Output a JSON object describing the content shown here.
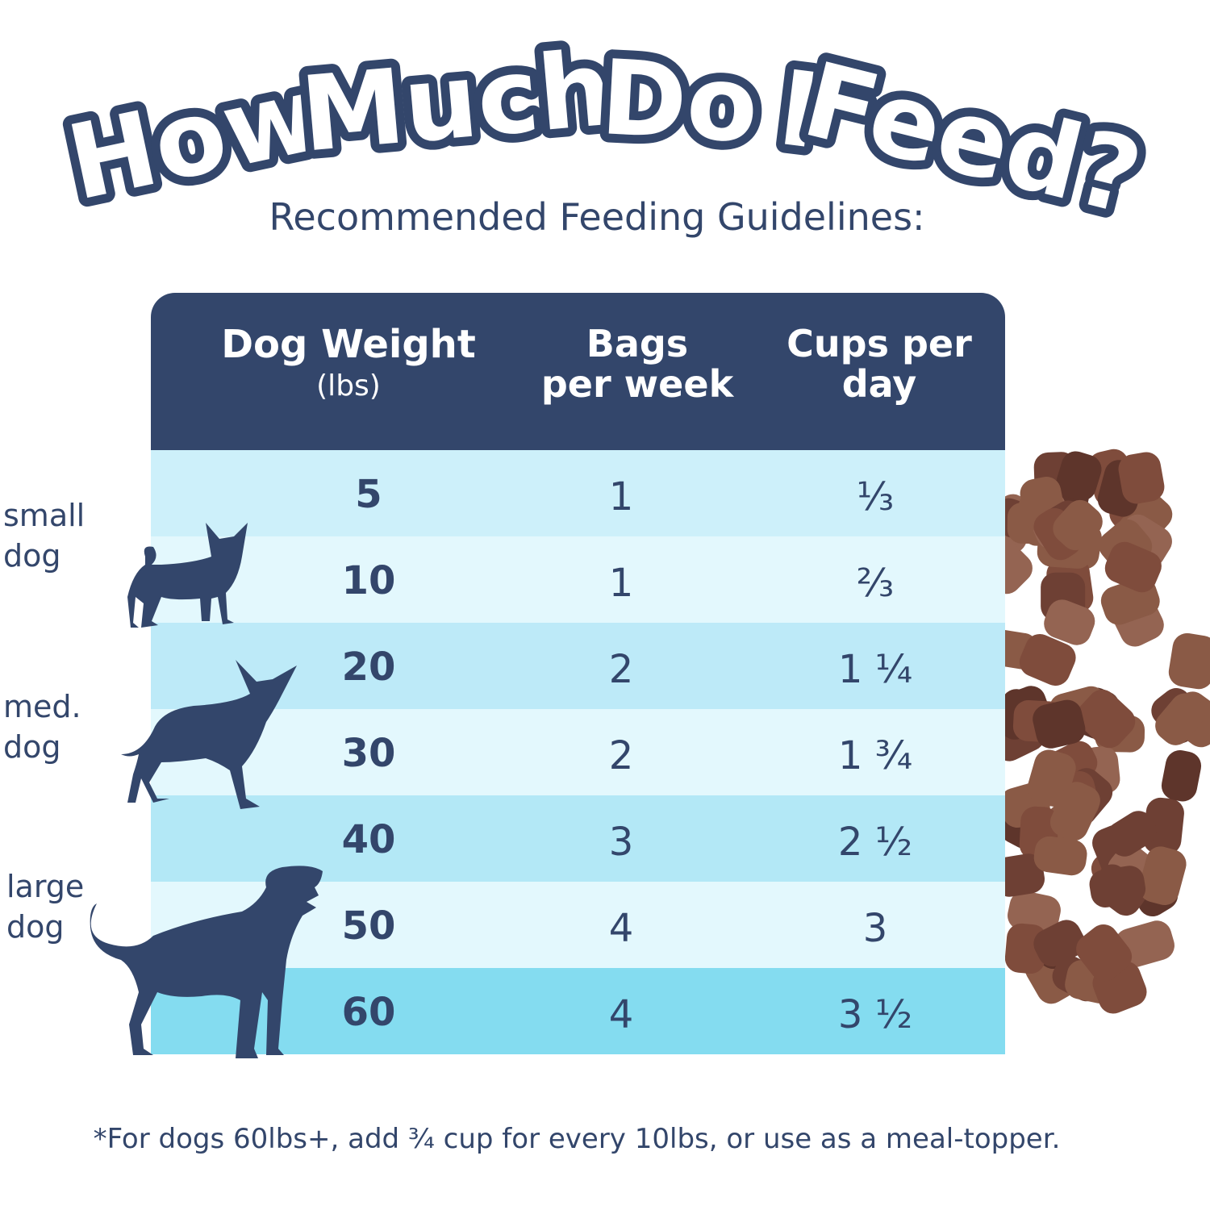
{
  "title": {
    "words": [
      "How",
      "Much",
      "Do",
      "I",
      "Feed?"
    ]
  },
  "subtitle": "Recommended Feeding Guidelines:",
  "colors": {
    "navy": "#33466b",
    "row_colors": [
      "#cdf0fa",
      "#e3f8fd",
      "#bdeaf8",
      "#e3f8fd",
      "#b3e8f6",
      "#e3f8fd",
      "#84dcf0"
    ],
    "kibble": "#7a4a3a"
  },
  "table": {
    "headers": [
      {
        "main": "Dog Weight",
        "sub": "(lbs)"
      },
      {
        "main": "Bags",
        "sub": "per week"
      },
      {
        "main": "Cups per",
        "sub": "day"
      }
    ],
    "rows": [
      {
        "weight": "5",
        "bags": "1",
        "cups": "⅓"
      },
      {
        "weight": "10",
        "bags": "1",
        "cups": "⅔"
      },
      {
        "weight": "20",
        "bags": "2",
        "cups": "1 ¼"
      },
      {
        "weight": "30",
        "bags": "2",
        "cups": "1 ¾"
      },
      {
        "weight": "40",
        "bags": "3",
        "cups": "2 ½"
      },
      {
        "weight": "50",
        "bags": "4",
        "cups": "3"
      },
      {
        "weight": "60",
        "bags": "4",
        "cups": "3 ½"
      }
    ]
  },
  "size_labels": [
    {
      "line1": "small",
      "line2": "dog"
    },
    {
      "line1": "med.",
      "line2": "dog"
    },
    {
      "line1": "large",
      "line2": "dog"
    }
  ],
  "footnote": "*For dogs 60lbs+, add ¾ cup for every 10lbs, or use as a meal-topper."
}
